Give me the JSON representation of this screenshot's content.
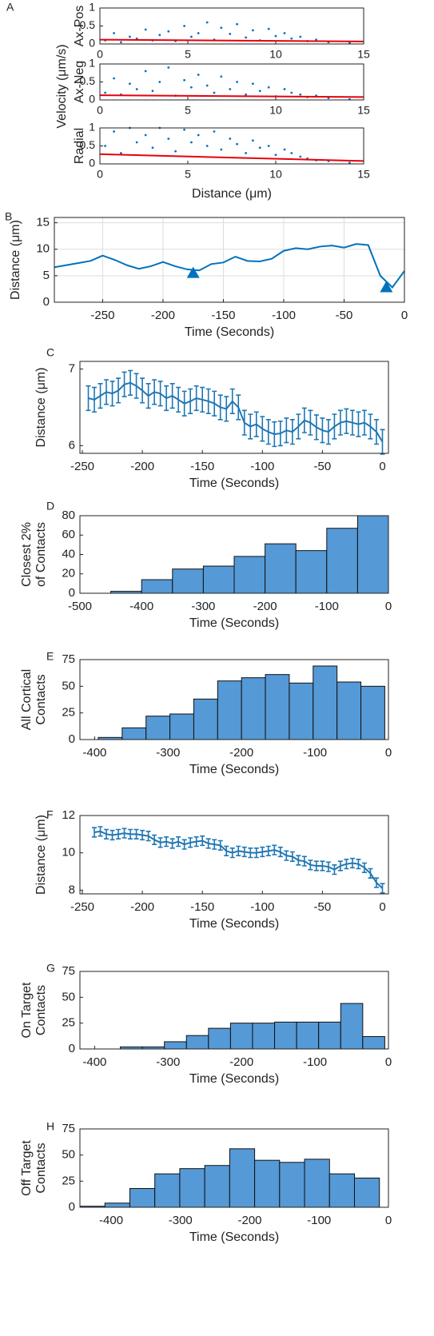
{
  "chart_data": [
    {
      "type": "scatter",
      "panel_label": "A",
      "group_ylabel": "Velocity (μm/s)",
      "ylabel": [
        "Ax-Pos"
      ],
      "color": "#0072bd",
      "fit_color": "#e8000b",
      "x": [
        0.3,
        0.8,
        1.2,
        1.7,
        2.1,
        2.6,
        3.0,
        3.4,
        3.9,
        4.3,
        4.8,
        5.2,
        5.6,
        6.1,
        6.5,
        6.9,
        7.4,
        7.8,
        8.3,
        8.7,
        9.1,
        9.6,
        10.0,
        10.5,
        10.9,
        11.4,
        11.8,
        12.3,
        13.0,
        14.2
      ],
      "values": [
        0.1,
        0.3,
        0.05,
        0.2,
        0.15,
        0.4,
        0.1,
        0.25,
        0.35,
        0.08,
        0.5,
        0.2,
        0.3,
        0.6,
        0.12,
        0.45,
        0.28,
        0.55,
        0.18,
        0.38,
        0.1,
        0.42,
        0.22,
        0.3,
        0.15,
        0.2,
        0.08,
        0.12,
        0.05,
        0.03
      ],
      "fit": {
        "x": [
          0,
          15
        ],
        "values": [
          0.12,
          0.07
        ]
      },
      "xlim": [
        0,
        15
      ],
      "xticks": [
        0,
        5,
        10,
        15
      ],
      "ylim": [
        0,
        1
      ],
      "yticks": [
        0,
        0.5,
        1
      ]
    },
    {
      "type": "scatter",
      "ylabel": [
        "Ax-Neg"
      ],
      "color": "#0072bd",
      "fit_color": "#e8000b",
      "x": [
        0.3,
        0.8,
        1.2,
        1.7,
        2.1,
        2.6,
        3.0,
        3.4,
        3.9,
        4.3,
        4.8,
        5.2,
        5.6,
        6.1,
        6.5,
        6.9,
        7.4,
        7.8,
        8.3,
        8.7,
        9.1,
        9.6,
        10.0,
        10.5,
        10.9,
        11.4,
        11.8,
        12.3,
        13.0,
        14.2
      ],
      "values": [
        0.2,
        0.6,
        0.15,
        0.45,
        0.3,
        0.8,
        0.25,
        0.5,
        0.9,
        0.12,
        0.55,
        0.35,
        0.7,
        0.4,
        0.2,
        0.65,
        0.3,
        0.5,
        0.15,
        0.45,
        0.25,
        0.35,
        0.1,
        0.3,
        0.2,
        0.15,
        0.08,
        0.12,
        0.05,
        0.02
      ],
      "fit": {
        "x": [
          0,
          15
        ],
        "values": [
          0.13,
          0.08
        ]
      },
      "xlim": [
        0,
        15
      ],
      "xticks": [
        0,
        5,
        10,
        15
      ],
      "ylim": [
        0,
        1
      ],
      "yticks": [
        0,
        0.5,
        1
      ]
    },
    {
      "type": "scatter",
      "ylabel": [
        "Radial"
      ],
      "xlabel": "Distance (μm)",
      "color": "#0072bd",
      "fit_color": "#e8000b",
      "x": [
        0.3,
        0.8,
        1.2,
        1.7,
        2.1,
        2.6,
        3.0,
        3.4,
        3.9,
        4.3,
        4.8,
        5.2,
        5.6,
        6.1,
        6.5,
        6.9,
        7.4,
        7.8,
        8.3,
        8.7,
        9.1,
        9.6,
        10.0,
        10.5,
        10.9,
        11.4,
        11.8,
        12.3,
        13.0,
        14.2
      ],
      "values": [
        0.5,
        0.9,
        0.3,
        1.0,
        0.6,
        0.8,
        0.45,
        1.0,
        0.7,
        0.35,
        0.95,
        0.6,
        0.8,
        0.5,
        0.9,
        0.4,
        0.7,
        0.55,
        0.3,
        0.65,
        0.45,
        0.5,
        0.25,
        0.4,
        0.3,
        0.2,
        0.15,
        0.1,
        0.08,
        0.03
      ],
      "fit": {
        "x": [
          0,
          15
        ],
        "values": [
          0.27,
          0.08
        ]
      },
      "xlim": [
        0,
        15
      ],
      "xticks": [
        0,
        5,
        10,
        15
      ],
      "ylim": [
        0,
        1
      ],
      "yticks": [
        0,
        0.5,
        1
      ]
    },
    {
      "type": "line",
      "panel_label": "B",
      "ylabel": [
        "Distance (μm)"
      ],
      "xlabel": "Time (Seconds)",
      "color": "#0072bd",
      "grid": true,
      "x": [
        -290,
        -280,
        -270,
        -260,
        -250,
        -240,
        -230,
        -220,
        -210,
        -200,
        -190,
        -180,
        -170,
        -160,
        -150,
        -140,
        -130,
        -120,
        -110,
        -100,
        -90,
        -80,
        -70,
        -60,
        -50,
        -40,
        -30,
        -20,
        -10,
        0
      ],
      "values": [
        6.6,
        7.0,
        7.4,
        7.8,
        8.8,
        8.0,
        7.0,
        6.3,
        6.8,
        7.6,
        6.8,
        6.2,
        6.0,
        7.2,
        7.5,
        8.6,
        7.8,
        7.7,
        8.2,
        9.7,
        10.2,
        10.0,
        10.5,
        10.7,
        10.3,
        11.0,
        10.8,
        5.0,
        2.8,
        5.9
      ],
      "markers": {
        "x": [
          -175,
          -15
        ],
        "values": [
          5.5,
          2.8
        ]
      },
      "xlim": [
        -290,
        0
      ],
      "xticks": [
        -250,
        -200,
        -150,
        -100,
        -50,
        0
      ],
      "ylim": [
        0,
        16
      ],
      "yticks": [
        0,
        5,
        10,
        15
      ]
    },
    {
      "type": "errorbar",
      "panel_label": "C",
      "ylabel": [
        "Distance (μm)"
      ],
      "xlabel": "Time (Seconds)",
      "color": "#1f77b4",
      "x": [
        -245,
        -240,
        -235,
        -230,
        -225,
        -220,
        -215,
        -210,
        -205,
        -200,
        -195,
        -190,
        -185,
        -180,
        -175,
        -170,
        -165,
        -160,
        -155,
        -150,
        -145,
        -140,
        -135,
        -130,
        -125,
        -120,
        -115,
        -110,
        -105,
        -100,
        -95,
        -90,
        -85,
        -80,
        -75,
        -70,
        -65,
        -60,
        -55,
        -50,
        -45,
        -40,
        -35,
        -30,
        -25,
        -20,
        -15,
        -10,
        -5,
        0
      ],
      "values": [
        6.62,
        6.6,
        6.65,
        6.7,
        6.68,
        6.72,
        6.8,
        6.82,
        6.78,
        6.72,
        6.65,
        6.7,
        6.68,
        6.62,
        6.65,
        6.6,
        6.55,
        6.58,
        6.62,
        6.6,
        6.58,
        6.55,
        6.5,
        6.48,
        6.58,
        6.5,
        6.3,
        6.25,
        6.28,
        6.22,
        6.18,
        6.15,
        6.16,
        6.2,
        6.18,
        6.25,
        6.33,
        6.3,
        6.24,
        6.2,
        6.18,
        6.25,
        6.3,
        6.32,
        6.3,
        6.28,
        6.3,
        6.25,
        6.18,
        6.05
      ],
      "error": 0.16,
      "xlim": [
        -252,
        5
      ],
      "xticks": [
        -250,
        -200,
        -150,
        -100,
        -50,
        0
      ],
      "ylim": [
        5.9,
        7.1
      ],
      "yticks": [
        6,
        7
      ]
    },
    {
      "type": "histogram",
      "panel_label": "D",
      "ylabel": [
        "Closest 2%",
        "of Contacts"
      ],
      "xlabel": "Time (Seconds)",
      "color": "#5599d6",
      "bins": [
        -500,
        -450,
        -400,
        -350,
        -300,
        -250,
        -200,
        -150,
        -100,
        -50,
        0
      ],
      "values": [
        0,
        2,
        14,
        25,
        28,
        38,
        51,
        44,
        67,
        80
      ],
      "xlim": [
        -500,
        0
      ],
      "xticks": [
        -500,
        -400,
        -300,
        -200,
        -100,
        0
      ],
      "ylim": [
        0,
        80
      ],
      "yticks": [
        0,
        20,
        40,
        60,
        80
      ]
    },
    {
      "type": "histogram",
      "panel_label": "E",
      "ylabel": [
        "All Cortical",
        "Contacts"
      ],
      "xlabel": "Time (Seconds)",
      "color": "#5599d6",
      "bins": [
        -395,
        -362.5,
        -330,
        -297.5,
        -265,
        -232.5,
        -200,
        -167.5,
        -135,
        -102.5,
        -70,
        -37.5,
        -5
      ],
      "values": [
        2,
        11,
        22,
        24,
        38,
        55,
        58,
        61,
        53,
        69,
        54,
        50
      ],
      "xlim": [
        -420,
        0
      ],
      "xticks": [
        -400,
        -300,
        -200,
        -100,
        0
      ],
      "ylim": [
        0,
        75
      ],
      "yticks": [
        0,
        25,
        50,
        75
      ]
    },
    {
      "type": "errorbar",
      "panel_label": "F",
      "ylabel": [
        "Distance (μm)"
      ],
      "xlabel": "Time (Seconds)",
      "color": "#1f77b4",
      "x": [
        -240,
        -235,
        -230,
        -225,
        -220,
        -215,
        -210,
        -205,
        -200,
        -195,
        -190,
        -185,
        -180,
        -175,
        -170,
        -165,
        -160,
        -155,
        -150,
        -145,
        -140,
        -135,
        -130,
        -125,
        -120,
        -115,
        -110,
        -105,
        -100,
        -95,
        -90,
        -85,
        -80,
        -75,
        -70,
        -65,
        -60,
        -55,
        -50,
        -45,
        -40,
        -35,
        -30,
        -25,
        -20,
        -15,
        -10,
        -5,
        0
      ],
      "values": [
        11.1,
        11.15,
        11.0,
        10.95,
        11.0,
        11.05,
        11.0,
        11.0,
        10.95,
        10.9,
        10.7,
        10.55,
        10.6,
        10.5,
        10.6,
        10.45,
        10.55,
        10.6,
        10.65,
        10.5,
        10.45,
        10.4,
        10.1,
        10.0,
        10.1,
        10.05,
        10.0,
        10.0,
        10.05,
        10.1,
        10.15,
        10.05,
        9.85,
        9.8,
        9.6,
        9.55,
        9.35,
        9.3,
        9.3,
        9.25,
        9.1,
        9.3,
        9.4,
        9.45,
        9.4,
        9.2,
        8.9,
        8.4,
        8.1
      ],
      "error": 0.25,
      "xlim": [
        -252,
        5
      ],
      "xticks": [
        -250,
        -200,
        -150,
        -100,
        -50,
        0
      ],
      "ylim": [
        7.8,
        12
      ],
      "yticks": [
        8,
        10,
        12
      ]
    },
    {
      "type": "histogram",
      "panel_label": "G",
      "ylabel": [
        "On Target",
        "Contacts"
      ],
      "xlabel": "Time (Seconds)",
      "color": "#5599d6",
      "bins": [
        -365,
        -335,
        -305,
        -275,
        -245,
        -215,
        -185,
        -155,
        -125,
        -95,
        -65,
        -35,
        -5
      ],
      "values": [
        2,
        2,
        7,
        13,
        20,
        25,
        25,
        26,
        26,
        26,
        44,
        12
      ],
      "xlim": [
        -420,
        0
      ],
      "xticks": [
        -400,
        -300,
        -200,
        -100,
        0
      ],
      "ylim": [
        0,
        75
      ],
      "yticks": [
        0,
        25,
        50,
        75
      ]
    },
    {
      "type": "histogram",
      "panel_label": "H",
      "ylabel": [
        "Off Target",
        "Contacts"
      ],
      "xlabel": "Time (Seconds)",
      "color": "#5599d6",
      "bins": [
        -445,
        -409,
        -373,
        -337,
        -301,
        -265,
        -229,
        -193,
        -157,
        -121,
        -85,
        -49,
        -13
      ],
      "values": [
        1,
        4,
        18,
        32,
        37,
        40,
        56,
        45,
        43,
        46,
        32,
        28
      ],
      "xlim": [
        -445,
        0
      ],
      "xticks": [
        -400,
        -300,
        -200,
        -100,
        0
      ],
      "ylim": [
        0,
        75
      ],
      "yticks": [
        0,
        25,
        50,
        75
      ]
    }
  ]
}
